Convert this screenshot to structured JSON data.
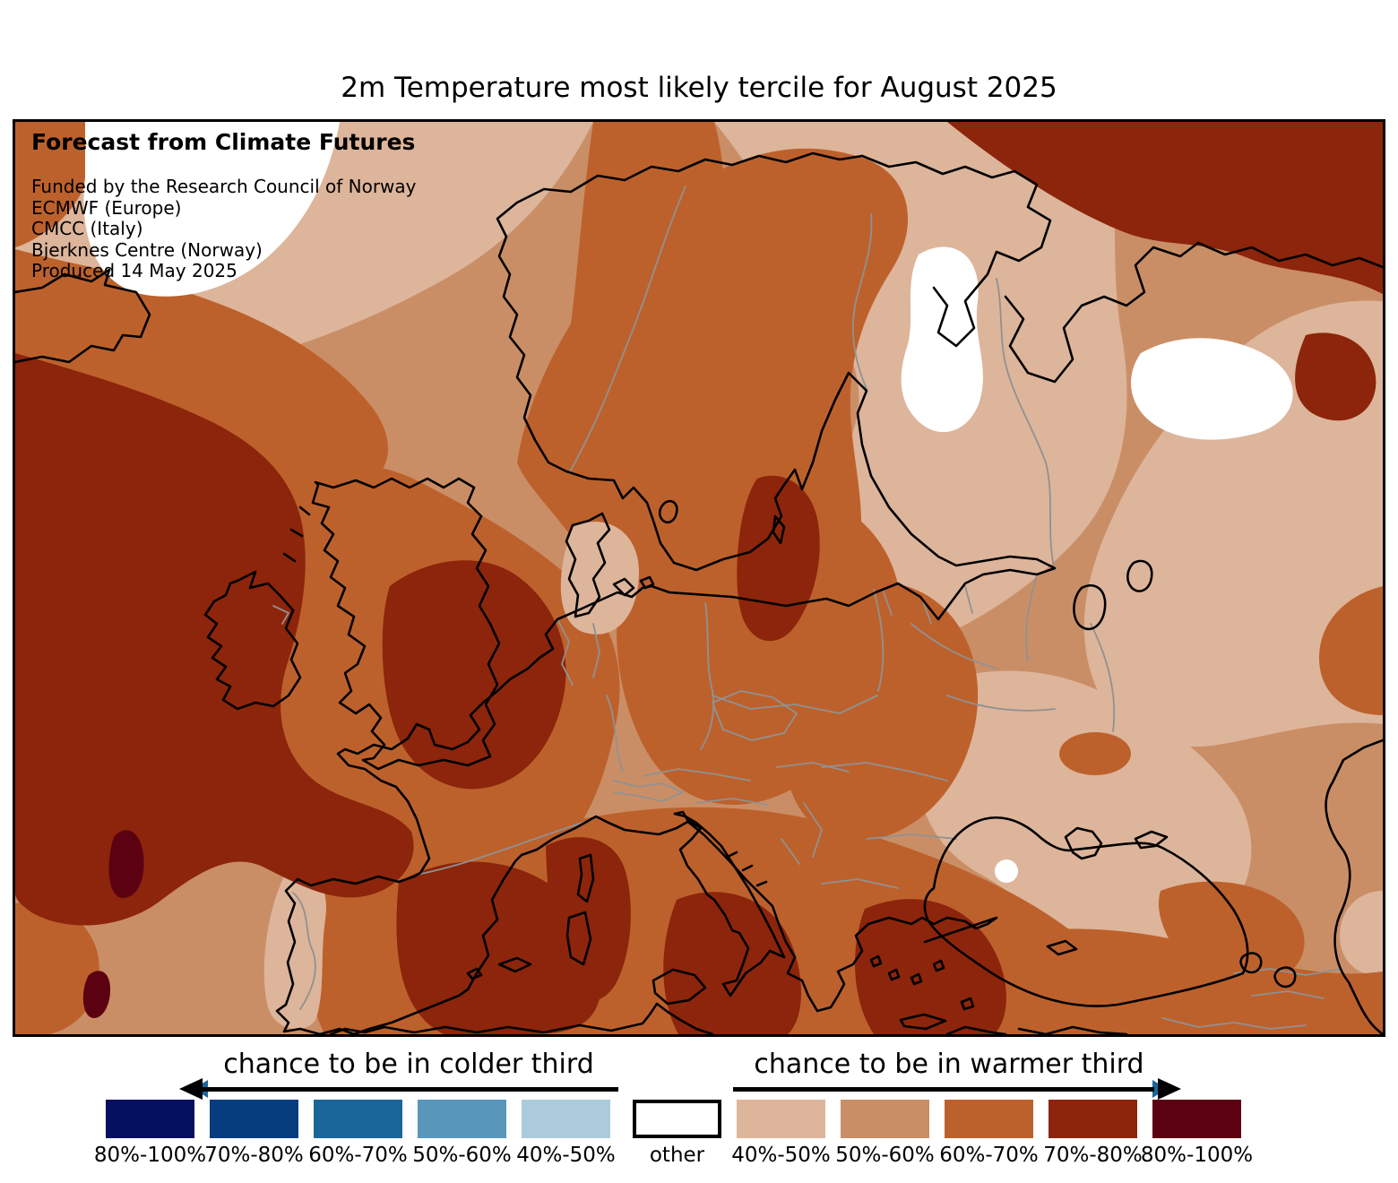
{
  "title": "2m Temperature most likely tercile for August 2025",
  "map_overlay": {
    "heading": "Forecast from Climate Futures",
    "lines": [
      "Funded by the Research Council of Norway",
      "ECMWF (Europe)",
      "CMCC (Italy)",
      "Bjerknes Centre (Norway)",
      "Produced 14 May 2025"
    ]
  },
  "legend": {
    "colder": {
      "title": "chance to be in colder third",
      "direction": "left",
      "bins": [
        {
          "label": "80%-100%",
          "color": "#051160"
        },
        {
          "label": "70%-80%",
          "color": "#063d7f"
        },
        {
          "label": "60%-70%",
          "color": "#1a669a"
        },
        {
          "label": "50%-60%",
          "color": "#5897ba"
        },
        {
          "label": "40%-50%",
          "color": "#abcbdd"
        }
      ]
    },
    "other": {
      "label": "other",
      "color": "#ffffff"
    },
    "warmer": {
      "title": "chance to be in warmer third",
      "direction": "right",
      "bins": [
        {
          "label": "40%-50%",
          "color": "#ddb59b"
        },
        {
          "label": "50%-60%",
          "color": "#ca8e66"
        },
        {
          "label": "60%-70%",
          "color": "#bd612c"
        },
        {
          "label": "70%-80%",
          "color": "#8c250b"
        },
        {
          "label": "80%-100%",
          "color": "#5c0112"
        }
      ]
    }
  },
  "map": {
    "region": "Europe",
    "variable": "2m Temperature",
    "most_likely_tercile_shown": "warmer third (oranges/browns dominate)",
    "colors": {
      "coastline": "#000000",
      "country_borders": "#919191",
      "frame": "#000000",
      "background": "#ffffff"
    }
  }
}
